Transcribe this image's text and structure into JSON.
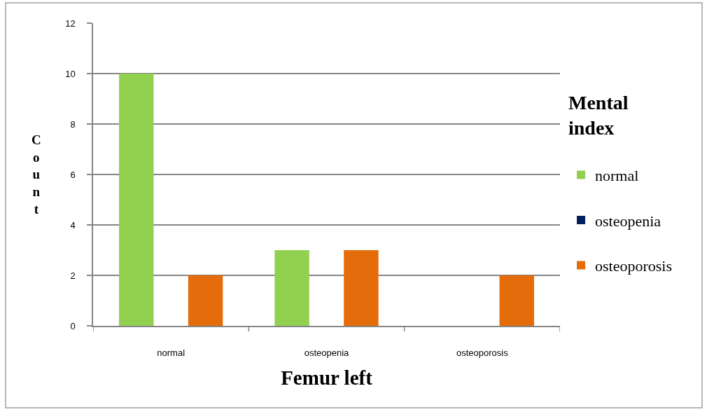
{
  "chart_data": {
    "type": "bar",
    "categories": [
      "normal",
      "osteopenia",
      "osteoporosis"
    ],
    "xlabel": "Femur left",
    "ylabel": "Count",
    "legend_title": "Mental index",
    "series": [
      {
        "name": "normal",
        "color": "#92d050",
        "values": [
          10,
          3,
          0
        ]
      },
      {
        "name": "osteopenia",
        "color": "#002060",
        "values": [
          0,
          0,
          0
        ]
      },
      {
        "name": "osteoporosis",
        "color": "#e46c0a",
        "values": [
          2,
          3,
          2
        ]
      }
    ],
    "ylim": [
      0,
      12
    ],
    "yticks": [
      0,
      2,
      4,
      6,
      8,
      10,
      12
    ],
    "grid": "y",
    "legend": "right"
  }
}
